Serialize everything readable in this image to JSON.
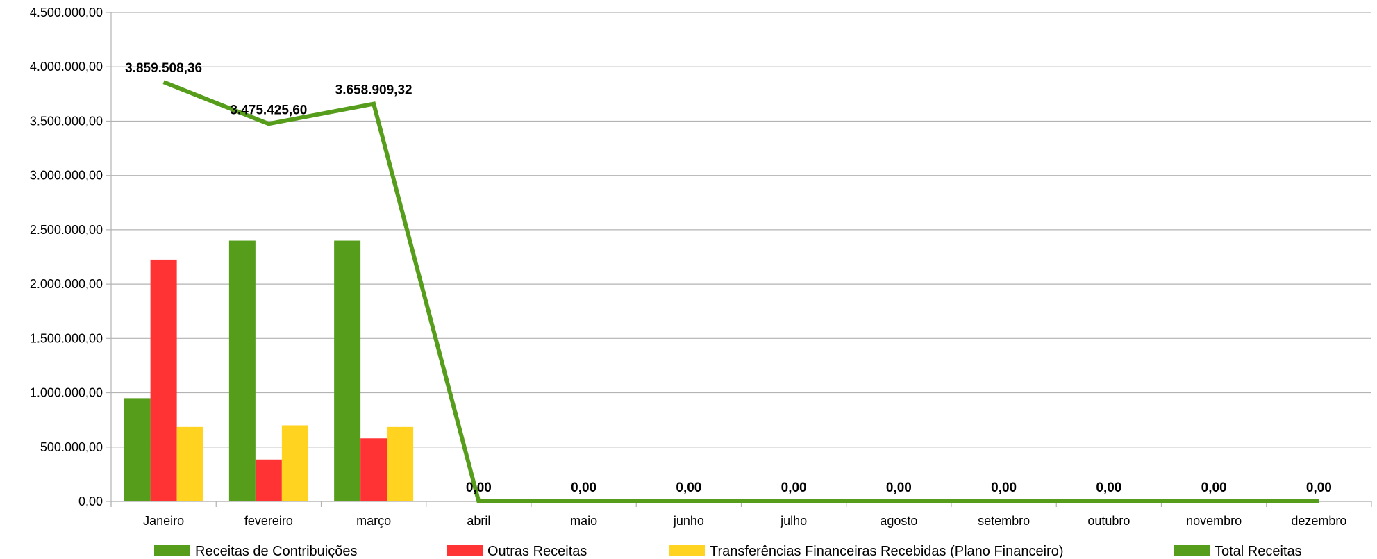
{
  "chart_data": {
    "type": "bar",
    "categories": [
      "Janeiro",
      "fevereiro",
      "março",
      "abril",
      "maio",
      "junho",
      "julho",
      "agosto",
      "setembro",
      "outubro",
      "novembro",
      "dezembro"
    ],
    "series": [
      {
        "name": "Receitas de Contribuições",
        "kind": "bar",
        "color": "#579d1c",
        "values": [
          950000,
          2400000,
          2400000,
          0,
          0,
          0,
          0,
          0,
          0,
          0,
          0,
          0
        ]
      },
      {
        "name": "Outras Receitas",
        "kind": "bar",
        "color": "#ff3333",
        "values": [
          2225000,
          385000,
          580000,
          0,
          0,
          0,
          0,
          0,
          0,
          0,
          0,
          0
        ]
      },
      {
        "name": "Transferências Financeiras Recebidas (Plano Financeiro)",
        "kind": "bar",
        "color": "#ffd320",
        "values": [
          685000,
          700000,
          685000,
          0,
          0,
          0,
          0,
          0,
          0,
          0,
          0,
          0
        ]
      },
      {
        "name": "Total Receitas",
        "kind": "line",
        "color": "#579d1c",
        "values": [
          3859508.36,
          3475425.6,
          3658909.32,
          0,
          0,
          0,
          0,
          0,
          0,
          0,
          0,
          0
        ]
      }
    ],
    "line_data_labels": [
      "3.859.508,36",
      "3.475.425,60",
      "3.658.909,32",
      "0,00",
      "0,00",
      "0,00",
      "0,00",
      "0,00",
      "0,00",
      "0,00",
      "0,00",
      "0,00"
    ],
    "y_ticks": [
      0,
      500000,
      1000000,
      1500000,
      2000000,
      2500000,
      3000000,
      3500000,
      4000000,
      4500000
    ],
    "y_tick_labels": [
      "0,00",
      "500.000,00",
      "1.000.000,00",
      "1.500.000,00",
      "2.000.000,00",
      "2.500.000,00",
      "3.000.000,00",
      "3.500.000,00",
      "4.000.000,00",
      "4.500.000,00"
    ],
    "ylim": [
      0,
      4500000
    ],
    "grid": true,
    "legend_position": "bottom",
    "title": "",
    "xlabel": "",
    "ylabel": ""
  }
}
